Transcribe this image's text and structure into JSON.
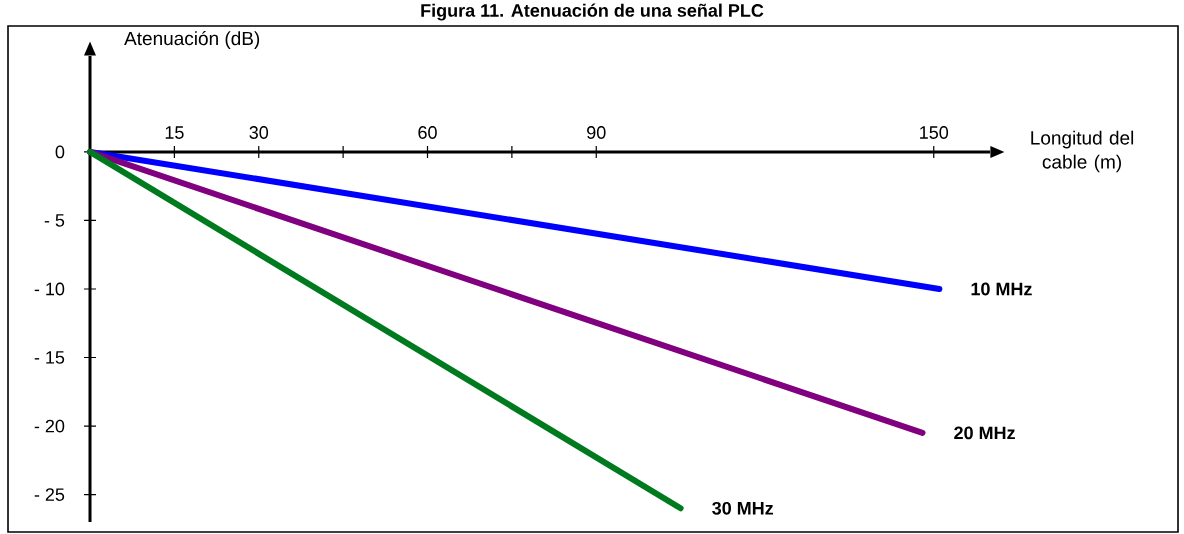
{
  "chart_data": {
    "type": "line",
    "title": "Figura 11. Atenuación de una señal PLC",
    "xlabel": "Longitud del cable (m)",
    "ylabel": "Atenuación (dB)",
    "xlim": [
      0,
      160
    ],
    "ylim": [
      -27,
      7
    ],
    "xticks": [
      15,
      30,
      {
        "value": 45,
        "label": null
      },
      60,
      {
        "value": 75,
        "label": null
      },
      90,
      150
    ],
    "yticks": [
      0,
      {
        "value": -5,
        "label": "- 5"
      },
      {
        "value": -10,
        "label": "- 10"
      },
      {
        "value": -15,
        "label": "- 15"
      },
      {
        "value": -20,
        "label": "- 20"
      },
      {
        "value": -25,
        "label": "- 25"
      }
    ],
    "series": [
      {
        "name": "10 MHz",
        "color": "#0000ff",
        "x": [
          0,
          151
        ],
        "values": [
          0,
          -10
        ]
      },
      {
        "name": "20 MHz",
        "color": "#800080",
        "x": [
          0,
          148
        ],
        "values": [
          0,
          -20.5
        ]
      },
      {
        "name": "30 MHz",
        "color": "#007a1e",
        "x": [
          0,
          105
        ],
        "values": [
          0,
          -26
        ]
      }
    ]
  }
}
